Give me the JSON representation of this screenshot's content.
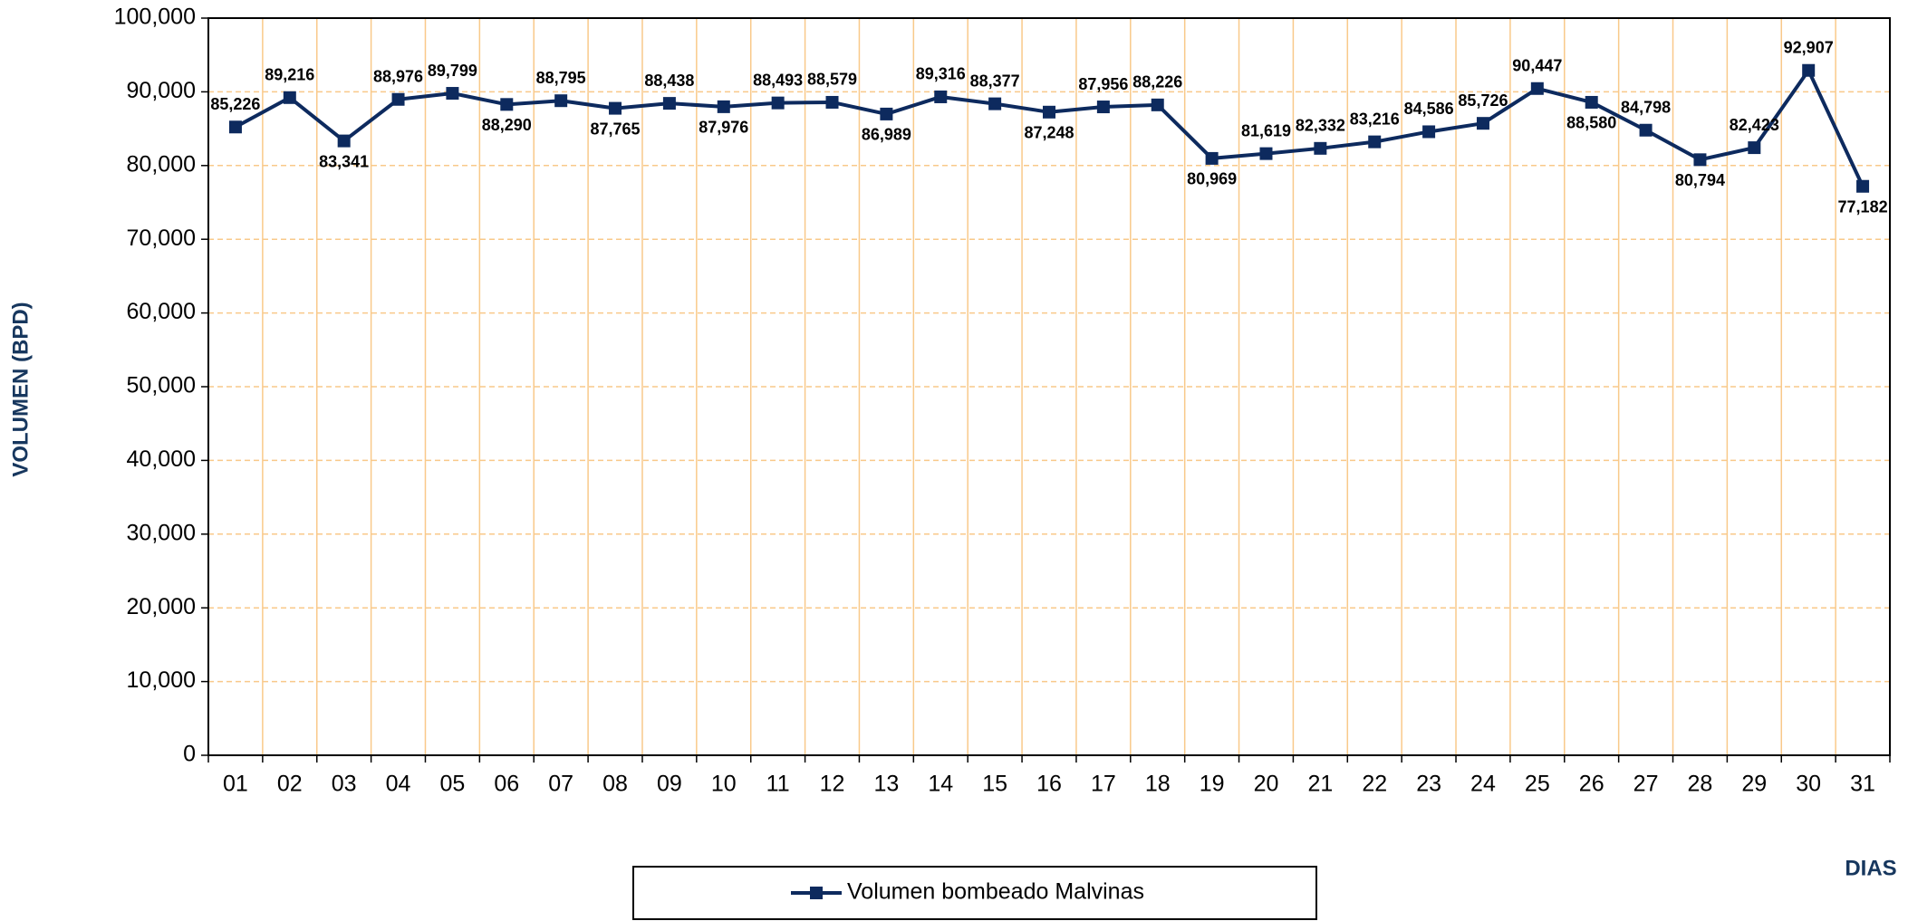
{
  "chart_data": {
    "type": "line",
    "x_label": "DIAS",
    "y_label": "VOLUMEN (BPD)",
    "categories": [
      "01",
      "02",
      "03",
      "04",
      "05",
      "06",
      "07",
      "08",
      "09",
      "10",
      "11",
      "12",
      "13",
      "14",
      "15",
      "16",
      "17",
      "18",
      "19",
      "20",
      "21",
      "22",
      "23",
      "24",
      "25",
      "26",
      "27",
      "28",
      "29",
      "30",
      "31"
    ],
    "series": [
      {
        "name": "Volumen bombeado Malvinas",
        "color": "#0d2a5e",
        "values": [
          85226,
          89216,
          83341,
          88976,
          89799,
          88290,
          88795,
          87765,
          88438,
          87976,
          88493,
          88579,
          86989,
          89316,
          88377,
          87248,
          87956,
          88226,
          80969,
          81619,
          82332,
          83216,
          84586,
          85726,
          90447,
          88580,
          84798,
          80794,
          82423,
          92907,
          77182
        ],
        "value_labels": [
          "85,226",
          "89,216",
          "83,341",
          "88,976",
          "89,799",
          "88,290",
          "88,795",
          "87,765",
          "88,438",
          "87,976",
          "88,493",
          "88,579",
          "86,989",
          "89,316",
          "88,377",
          "87,248",
          "87,956",
          "88,226",
          "80,969",
          "81,619",
          "82,332",
          "83,216",
          "84,586",
          "85,726",
          "90,447",
          "88,580",
          "84,798",
          "80,794",
          "82,423",
          "92,907",
          "77,182"
        ]
      }
    ],
    "ylim": [
      0,
      100000
    ],
    "yticks": [
      0,
      {
        "value": 10000,
        "label": "10,000"
      },
      {
        "value": 20000,
        "label": "20,000"
      },
      {
        "value": 30000,
        "label": "30,000"
      },
      {
        "value": 40000,
        "label": "40,000"
      },
      {
        "value": 50000,
        "label": "50,000"
      },
      {
        "value": 60000,
        "label": "60,000"
      },
      {
        "value": 70000,
        "label": "70,000"
      },
      {
        "value": 80000,
        "label": "80,000"
      },
      {
        "value": 90000,
        "label": "90,000"
      },
      {
        "value": 100000,
        "label": "100,000"
      }
    ],
    "grid": true,
    "grid_color": "#f9c98a",
    "legend": "bottom"
  }
}
